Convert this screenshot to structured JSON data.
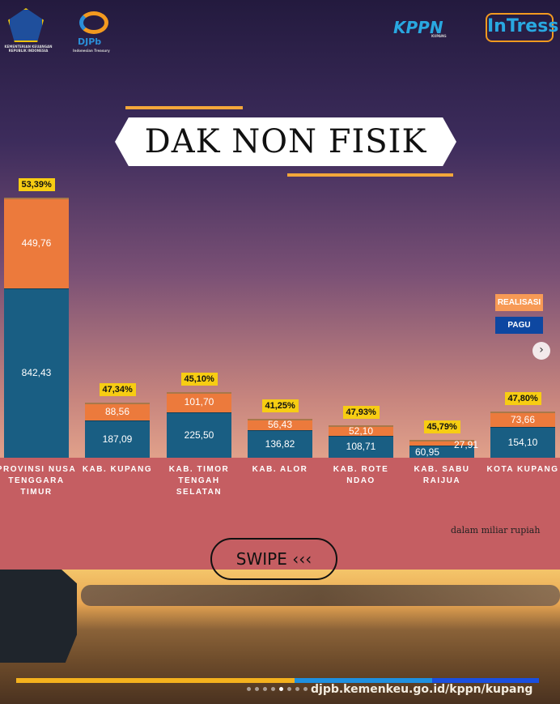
{
  "logos": {
    "kemenkeu": "KEMENTERIAN KEUANGAN REPUBLIK INDONESIA",
    "djpb": "DJPb",
    "djpb_sub": "Indonesian Treasury",
    "kppn": "KPPN",
    "kppn_sub": "KUPANG",
    "intress": "InTress"
  },
  "title": "DAK NON FISIK",
  "chart_data": {
    "type": "bar",
    "stacked": true,
    "categories": [
      "PROVINSI NUSA TENGGARA TIMUR",
      "KAB. KUPANG",
      "KAB. TIMOR TENGAH SELATAN",
      "KAB. ALOR",
      "KAB. ROTE NDAO",
      "KAB. SABU RAIJUA",
      "KOTA KUPANG"
    ],
    "series": [
      {
        "name": "PAGU",
        "color": "#195e83",
        "values": [
          842.43,
          187.09,
          225.5,
          136.82,
          108.71,
          60.95,
          154.1
        ],
        "labels": [
          "842,43",
          "187,09",
          "225,50",
          "136,82",
          "108,71",
          "60,95",
          "154,10"
        ]
      },
      {
        "name": "REALISASI",
        "color": "#ec7a3c",
        "values": [
          449.76,
          88.56,
          101.7,
          56.43,
          52.1,
          27.91,
          73.66
        ],
        "labels": [
          "449,76",
          "88,56",
          "101,70",
          "56,43",
          "52,10",
          "27,91",
          "73,66"
        ]
      }
    ],
    "percent_labels": [
      "53,39%",
      "47,34%",
      "45,10%",
      "41,25%",
      "47,93%",
      "45,79%",
      "47,80%"
    ],
    "legend": {
      "placement": "right",
      "items": [
        "REALISASI",
        "PAGU"
      ]
    },
    "unit_note": "dalam miliar rupiah",
    "grid": false
  },
  "swipe": "SWIPE",
  "swipe_icon": "chevrons-left-icon",
  "url": "djpb.kemenkeu.go.id/kppn/kupang",
  "carousel": {
    "dots": 8,
    "active": 5
  }
}
